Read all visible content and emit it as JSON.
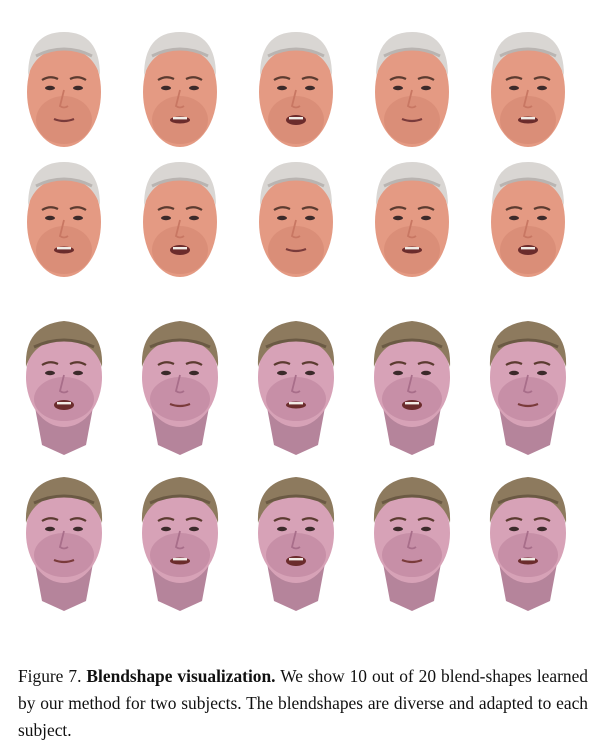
{
  "figure": {
    "rows": [
      {
        "subject": "subject-1",
        "count": 5
      },
      {
        "subject": "subject-1",
        "count": 5
      },
      {
        "subject": "subject-2",
        "count": 5
      },
      {
        "subject": "subject-2",
        "count": 5
      }
    ],
    "colors": {
      "subject-1": {
        "skin": "#e49a83",
        "skin_dark": "#c87763",
        "hair": "#d9d6d3",
        "hair_shadow": "#b9b4b1"
      },
      "subject-2": {
        "skin": "#d7a2b7",
        "skin_dark": "#a86e8a",
        "hair": "#8d7a5e",
        "hair_shadow": "#6b5a44"
      }
    }
  },
  "caption": {
    "label": "Figure 7.",
    "title": "Blendshape visualization.",
    "text": "We show 10 out of 20 blend-shapes learned by our method for two subjects. The blendshapes are diverse and adapted to each subject."
  }
}
